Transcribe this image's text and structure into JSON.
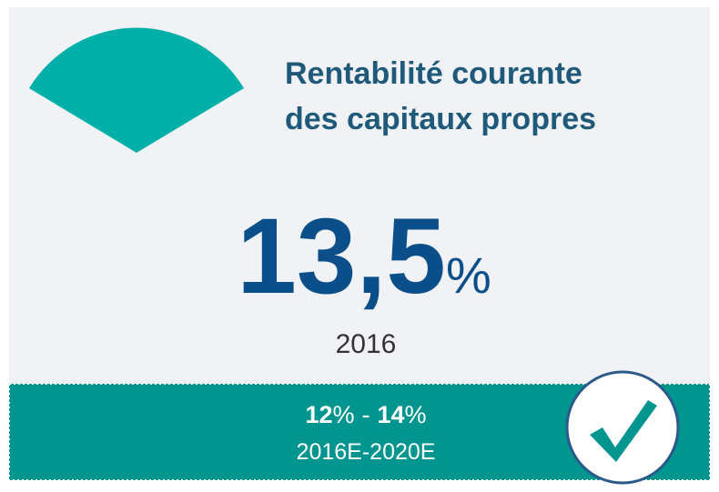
{
  "title": {
    "line1": "Rentabilité courante",
    "line2": "des capitaux propres"
  },
  "kpi": {
    "value": "13,5",
    "unit": "%",
    "year": "2016"
  },
  "target": {
    "low": "12",
    "low_unit": "%",
    "separator": "-",
    "high": "14",
    "high_unit": "%",
    "period": "2016E-2020E"
  }
}
